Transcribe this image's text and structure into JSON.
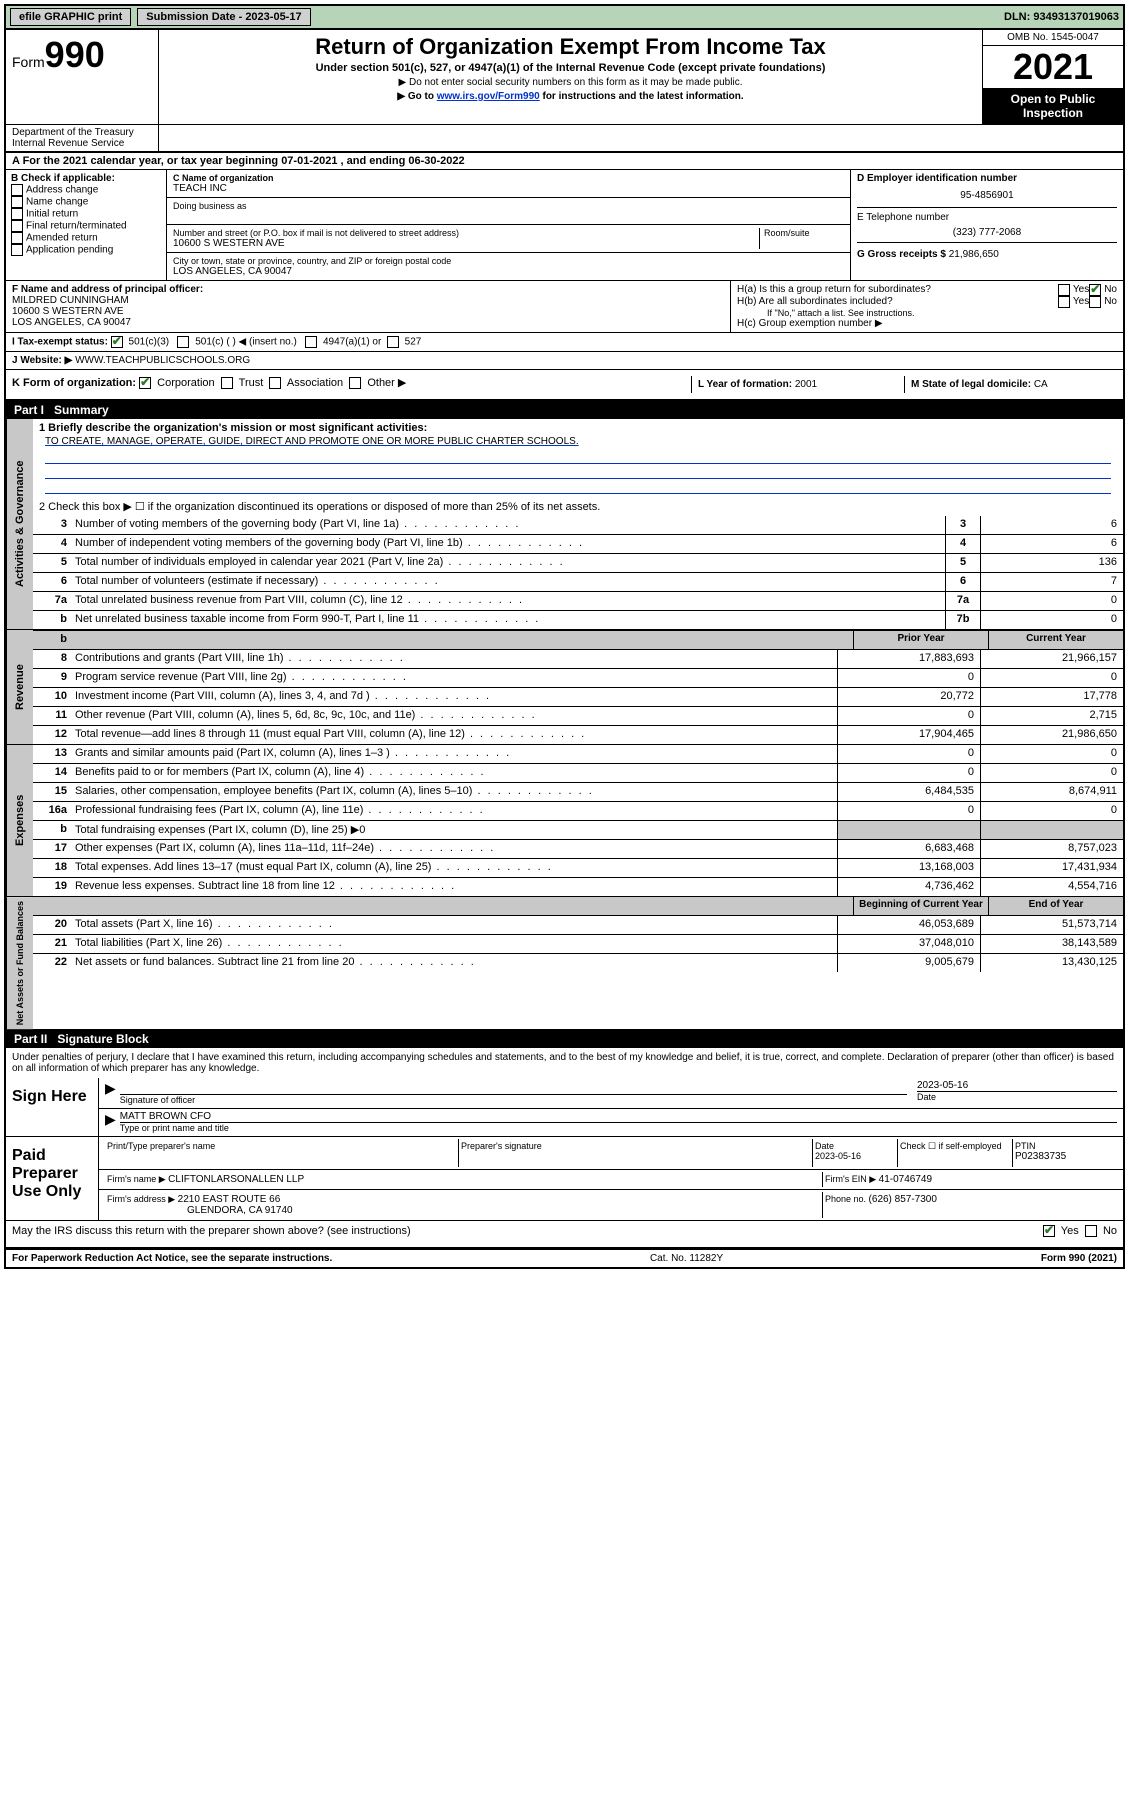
{
  "topbar": {
    "efile": "efile GRAPHIC print",
    "submission_label": "Submission Date - 2023-05-17",
    "dln": "DLN: 93493137019063"
  },
  "header": {
    "form_word": "Form",
    "form_num": "990",
    "title": "Return of Organization Exempt From Income Tax",
    "subtitle": "Under section 501(c), 527, or 4947(a)(1) of the Internal Revenue Code (except private foundations)",
    "note1": "▶ Do not enter social security numbers on this form as it may be made public.",
    "note2_pre": "▶ Go to ",
    "note2_link": "www.irs.gov/Form990",
    "note2_post": " for instructions and the latest information.",
    "omb": "OMB No. 1545-0047",
    "year": "2021",
    "open": "Open to Public Inspection",
    "dept": "Department of the Treasury Internal Revenue Service"
  },
  "row_a": "A For the 2021 calendar year, or tax year beginning 07-01-2021  , and ending 06-30-2022",
  "col_b": {
    "label": "B Check if applicable:",
    "opts": [
      "Address change",
      "Name change",
      "Initial return",
      "Final return/terminated",
      "Amended return",
      "Application pending"
    ]
  },
  "col_c": {
    "name_label": "C Name of organization",
    "name": "TEACH INC",
    "dba_label": "Doing business as",
    "addr_label": "Number and street (or P.O. box if mail is not delivered to street address)",
    "room": "Room/suite",
    "addr": "10600 S WESTERN AVE",
    "city_label": "City or town, state or province, country, and ZIP or foreign postal code",
    "city": "LOS ANGELES, CA  90047"
  },
  "col_d": {
    "ein_label": "D Employer identification number",
    "ein": "95-4856901",
    "phone_label": "E Telephone number",
    "phone": "(323) 777-2068",
    "gross_label": "G Gross receipts $ ",
    "gross": "21,986,650"
  },
  "row_f": {
    "label": "F  Name and address of principal officer:",
    "name": "MILDRED CUNNINGHAM",
    "addr1": "10600 S WESTERN AVE",
    "addr2": "LOS ANGELES, CA  90047"
  },
  "row_h": {
    "ha": "H(a)  Is this a group return for subordinates?",
    "yes": "Yes",
    "no": "No",
    "hb": "H(b)  Are all subordinates included?",
    "hb_note": "If \"No,\" attach a list. See instructions.",
    "hc": "H(c)  Group exemption number ▶"
  },
  "row_i": {
    "label": "I  Tax-exempt status:",
    "a": "501(c)(3)",
    "b": "501(c) (  ) ◀ (insert no.)",
    "c": "4947(a)(1) or",
    "d": "527"
  },
  "row_j": {
    "label": "J  Website: ▶ ",
    "val": "WWW.TEACHPUBLICSCHOOLS.ORG"
  },
  "row_k": {
    "label": "K Form of organization:",
    "a": "Corporation",
    "b": "Trust",
    "c": "Association",
    "d": "Other ▶"
  },
  "row_l": {
    "label": "L Year of formation: ",
    "val": "2001"
  },
  "row_m": {
    "label": "M State of legal domicile: ",
    "val": "CA"
  },
  "part1": {
    "label": "Part I",
    "title": "Summary"
  },
  "summary": {
    "l1_label": "1  Briefly describe the organization's mission or most significant activities:",
    "l1_text": "TO CREATE, MANAGE, OPERATE, GUIDE, DIRECT AND PROMOTE ONE OR MORE PUBLIC CHARTER SCHOOLS.",
    "l2": "2  Check this box ▶ ☐  if the organization discontinued its operations or disposed of more than 25% of its net assets.",
    "lines_gov": [
      {
        "n": "3",
        "d": "Number of voting members of the governing body (Part VI, line 1a)",
        "box": "3",
        "v": "6"
      },
      {
        "n": "4",
        "d": "Number of independent voting members of the governing body (Part VI, line 1b)",
        "box": "4",
        "v": "6"
      },
      {
        "n": "5",
        "d": "Total number of individuals employed in calendar year 2021 (Part V, line 2a)",
        "box": "5",
        "v": "136"
      },
      {
        "n": "6",
        "d": "Total number of volunteers (estimate if necessary)",
        "box": "6",
        "v": "7"
      },
      {
        "n": "7a",
        "d": "Total unrelated business revenue from Part VIII, column (C), line 12",
        "box": "7a",
        "v": "0"
      },
      {
        "n": "b",
        "d": "Net unrelated business taxable income from Form 990-T, Part I, line 11",
        "box": "7b",
        "v": "0"
      }
    ],
    "prior": "Prior Year",
    "current": "Current Year",
    "rev": [
      {
        "n": "8",
        "d": "Contributions and grants (Part VIII, line 1h)",
        "p": "17,883,693",
        "c": "21,966,157"
      },
      {
        "n": "9",
        "d": "Program service revenue (Part VIII, line 2g)",
        "p": "0",
        "c": "0"
      },
      {
        "n": "10",
        "d": "Investment income (Part VIII, column (A), lines 3, 4, and 7d )",
        "p": "20,772",
        "c": "17,778"
      },
      {
        "n": "11",
        "d": "Other revenue (Part VIII, column (A), lines 5, 6d, 8c, 9c, 10c, and 11e)",
        "p": "0",
        "c": "2,715"
      },
      {
        "n": "12",
        "d": "Total revenue—add lines 8 through 11 (must equal Part VIII, column (A), line 12)",
        "p": "17,904,465",
        "c": "21,986,650"
      }
    ],
    "exp": [
      {
        "n": "13",
        "d": "Grants and similar amounts paid (Part IX, column (A), lines 1–3 )",
        "p": "0",
        "c": "0"
      },
      {
        "n": "14",
        "d": "Benefits paid to or for members (Part IX, column (A), line 4)",
        "p": "0",
        "c": "0"
      },
      {
        "n": "15",
        "d": "Salaries, other compensation, employee benefits (Part IX, column (A), lines 5–10)",
        "p": "6,484,535",
        "c": "8,674,911"
      },
      {
        "n": "16a",
        "d": "Professional fundraising fees (Part IX, column (A), line 11e)",
        "p": "0",
        "c": "0"
      },
      {
        "n": "b",
        "d": "Total fundraising expenses (Part IX, column (D), line 25) ▶0",
        "p": "",
        "c": "",
        "shaded": true
      },
      {
        "n": "17",
        "d": "Other expenses (Part IX, column (A), lines 11a–11d, 11f–24e)",
        "p": "6,683,468",
        "c": "8,757,023"
      },
      {
        "n": "18",
        "d": "Total expenses. Add lines 13–17 (must equal Part IX, column (A), line 25)",
        "p": "13,168,003",
        "c": "17,431,934"
      },
      {
        "n": "19",
        "d": "Revenue less expenses. Subtract line 18 from line 12",
        "p": "4,736,462",
        "c": "4,554,716"
      }
    ],
    "begin": "Beginning of Current Year",
    "end": "End of Year",
    "net": [
      {
        "n": "20",
        "d": "Total assets (Part X, line 16)",
        "p": "46,053,689",
        "c": "51,573,714"
      },
      {
        "n": "21",
        "d": "Total liabilities (Part X, line 26)",
        "p": "37,048,010",
        "c": "38,143,589"
      },
      {
        "n": "22",
        "d": "Net assets or fund balances. Subtract line 21 from line 20",
        "p": "9,005,679",
        "c": "13,430,125"
      }
    ]
  },
  "part2": {
    "label": "Part II",
    "title": "Signature Block"
  },
  "sig": {
    "decl": "Under penalties of perjury, I declare that I have examined this return, including accompanying schedules and statements, and to the best of my knowledge and belief, it is true, correct, and complete. Declaration of preparer (other than officer) is based on all information of which preparer has any knowledge.",
    "sign_here": "Sign Here",
    "sig_officer": "Signature of officer",
    "date": "Date",
    "date_val": "2023-05-16",
    "officer": "MATT BROWN CFO",
    "officer_label": "Type or print name and title",
    "paid": "Paid Preparer Use Only",
    "prep_name": "Print/Type preparer's name",
    "prep_sig": "Preparer's signature",
    "prep_date": "2023-05-16",
    "check_self": "Check ☐ if self-employed",
    "ptin_label": "PTIN",
    "ptin": "P02383735",
    "firm_name_label": "Firm's name    ▶ ",
    "firm_name": "CLIFTONLARSONALLEN LLP",
    "firm_ein_label": "Firm's EIN ▶ ",
    "firm_ein": "41-0746749",
    "firm_addr_label": "Firm's address ▶ ",
    "firm_addr": "2210 EAST ROUTE 66",
    "firm_city": "GLENDORA, CA  91740",
    "firm_phone_label": "Phone no. ",
    "firm_phone": "(626) 857-7300",
    "may": "May the IRS discuss this return with the preparer shown above? (see instructions)",
    "yes": "Yes",
    "no": "No"
  },
  "footer": {
    "left": "For Paperwork Reduction Act Notice, see the separate instructions.",
    "mid": "Cat. No. 11282Y",
    "right": "Form 990 (2021)"
  },
  "vert": {
    "gov": "Activities & Governance",
    "rev": "Revenue",
    "exp": "Expenses",
    "net": "Net Assets or Fund Balances"
  }
}
